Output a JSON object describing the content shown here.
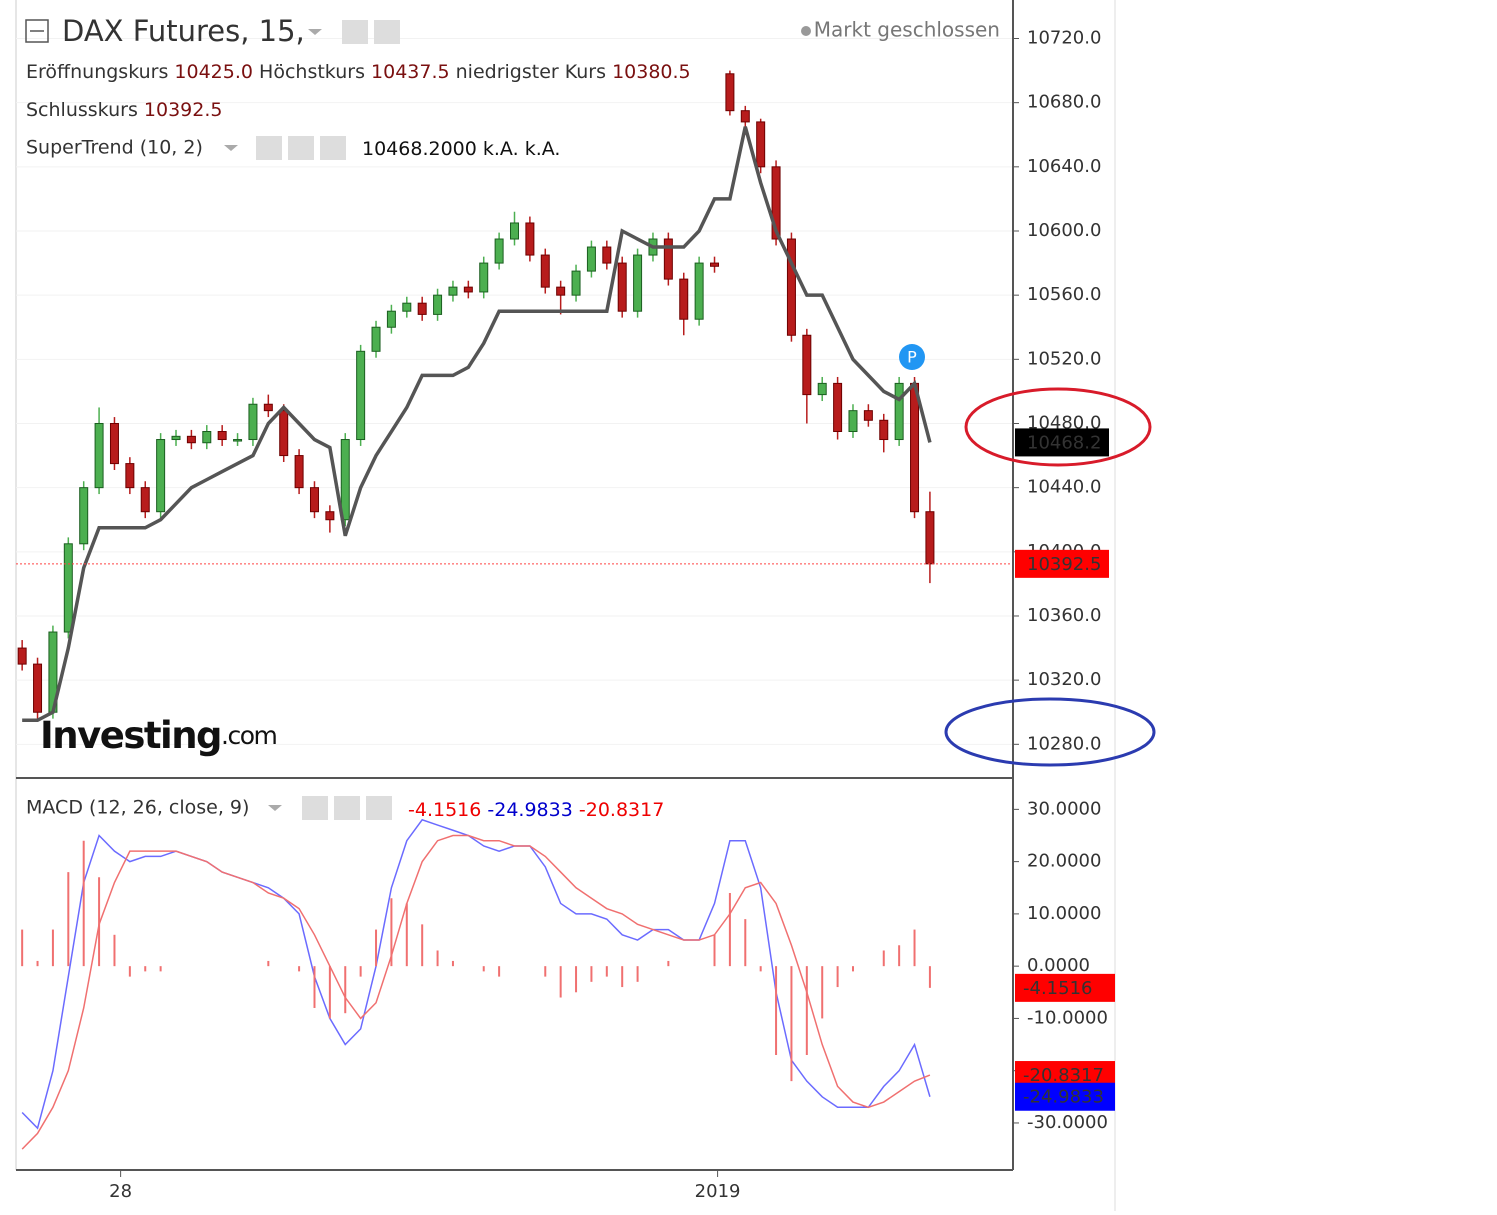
{
  "header": {
    "title": "DAX Futures, 15,",
    "status": "Markt geschlossen",
    "open_label": "Eröffnungskurs",
    "open_value": "10425.0",
    "high_label": "Höchstkurs",
    "high_value": "10437.5",
    "low_label": "niedrigster Kurs",
    "low_value": "10380.5",
    "close_label": "Schlusskurs",
    "close_value": "10392.5",
    "supertrend_title": "SuperTrend (10, 2)",
    "supertrend_readout": "10468.2000",
    "na_1": "k.A.",
    "na_2": "k.A.",
    "macd_title": "MACD (12, 26, close, 9)",
    "marker": "P",
    "logo_main": "Investing",
    "logo_suffix": ".com"
  },
  "chart_data": [
    {
      "type": "candlestick",
      "xlim": [
        -0.4,
        64.4
      ],
      "xticks": [
        {
          "value": 6.4,
          "label": "28"
        },
        {
          "value": 45.2,
          "label": "2019"
        }
      ],
      "ylim": [
        10259,
        10744
      ],
      "yticks": [
        {
          "value": 10280,
          "label": "10280.0"
        },
        {
          "value": 10320,
          "label": "10320.0"
        },
        {
          "value": 10360,
          "label": "10360.0"
        },
        {
          "value": 10400,
          "label": "10400.0"
        },
        {
          "value": 10440,
          "label": "10440.0"
        },
        {
          "value": 10480,
          "label": "10480.0"
        },
        {
          "value": 10520,
          "label": "10520.0"
        },
        {
          "value": 10560,
          "label": "10560.0"
        },
        {
          "value": 10600,
          "label": "10600.0"
        },
        {
          "value": 10640,
          "label": "10640.0"
        },
        {
          "value": 10680,
          "label": "10680.0"
        },
        {
          "value": 10720,
          "label": "10720.0"
        }
      ],
      "grid": true,
      "up_color": "#4caf50",
      "down_color": "#b71c1c",
      "ohlc": [
        [
          10340,
          10345,
          10326,
          10330
        ],
        [
          10330,
          10334,
          10296,
          10300
        ],
        [
          10300,
          10354,
          10296,
          10350
        ],
        [
          10350,
          10409,
          10346,
          10405
        ],
        [
          10405,
          10444,
          10401,
          10440
        ],
        [
          10440,
          10490,
          10436,
          10480
        ],
        [
          10480,
          10484,
          10451,
          10455
        ],
        [
          10455,
          10459,
          10436,
          10440
        ],
        [
          10440,
          10444,
          10421,
          10425
        ],
        [
          10425,
          10474,
          10421,
          10470
        ],
        [
          10470,
          10476,
          10466,
          10472
        ],
        [
          10472,
          10476,
          10464,
          10468
        ],
        [
          10468,
          10479,
          10464,
          10475
        ],
        [
          10475,
          10479,
          10466,
          10470
        ],
        [
          10470,
          10474,
          10466,
          10470
        ],
        [
          10470,
          10496,
          10466,
          10492
        ],
        [
          10492,
          10498,
          10484,
          10488
        ],
        [
          10488,
          10492,
          10456,
          10460
        ],
        [
          10460,
          10464,
          10436,
          10440
        ],
        [
          10440,
          10444,
          10421,
          10425
        ],
        [
          10425,
          10429,
          10412,
          10420
        ],
        [
          10420,
          10474,
          10416,
          10470
        ],
        [
          10470,
          10529,
          10466,
          10525
        ],
        [
          10525,
          10544,
          10521,
          10540
        ],
        [
          10540,
          10554,
          10536,
          10550
        ],
        [
          10550,
          10559,
          10546,
          10555
        ],
        [
          10555,
          10559,
          10544,
          10548
        ],
        [
          10548,
          10564,
          10544,
          10560
        ],
        [
          10560,
          10569,
          10556,
          10565
        ],
        [
          10565,
          10569,
          10558,
          10562
        ],
        [
          10562,
          10584,
          10558,
          10580
        ],
        [
          10580,
          10599,
          10576,
          10595
        ],
        [
          10595,
          10612,
          10591,
          10605
        ],
        [
          10605,
          10609,
          10581,
          10585
        ],
        [
          10585,
          10589,
          10561,
          10565
        ],
        [
          10565,
          10569,
          10548,
          10560
        ],
        [
          10560,
          10579,
          10556,
          10575
        ],
        [
          10575,
          10594,
          10571,
          10590
        ],
        [
          10590,
          10594,
          10576,
          10580
        ],
        [
          10580,
          10584,
          10546,
          10550
        ],
        [
          10550,
          10589,
          10546,
          10585
        ],
        [
          10585,
          10599,
          10581,
          10595
        ],
        [
          10595,
          10599,
          10566,
          10570
        ],
        [
          10570,
          10574,
          10535,
          10545
        ],
        [
          10545,
          10584,
          10541,
          10580
        ],
        [
          10580,
          10584,
          10574,
          10578
        ],
        [
          10698,
          10700,
          10672,
          10675
        ],
        [
          10675,
          10678,
          10660,
          10668
        ],
        [
          10668,
          10670,
          10636,
          10640
        ],
        [
          10640,
          10644,
          10591,
          10595
        ],
        [
          10595,
          10599,
          10531,
          10535
        ],
        [
          10535,
          10539,
          10480,
          10498
        ],
        [
          10498,
          10509,
          10494,
          10505
        ],
        [
          10505,
          10509,
          10470,
          10475
        ],
        [
          10475,
          10492,
          10471,
          10488
        ],
        [
          10488,
          10492,
          10478,
          10482
        ],
        [
          10482,
          10486,
          10462,
          10470
        ],
        [
          10470,
          10509,
          10466,
          10505
        ],
        [
          10505,
          10509,
          10421,
          10425
        ],
        [
          10425,
          10437.5,
          10380.5,
          10392.5
        ]
      ],
      "series": [
        {
          "color": "#555555",
          "values": [
            10295,
            10295,
            10300,
            10340,
            10390,
            10415,
            10415,
            10415,
            10415,
            10420,
            10430,
            10440,
            10445,
            10450,
            10455,
            10460,
            10480,
            10490,
            10480,
            10470,
            10465,
            10410,
            10440,
            10460,
            10475,
            10490,
            10510,
            10510,
            10510,
            10515,
            10530,
            10550,
            10550,
            10550,
            10550,
            10550,
            10550,
            10550,
            10550,
            10600,
            10595,
            10590,
            10590,
            10590,
            10600,
            10620,
            10620,
            10665,
            10630,
            10600,
            10580,
            10560,
            10560,
            10540,
            10520,
            10510,
            10500,
            10495,
            10505,
            10468.2
          ]
        }
      ]
    },
    {
      "type": "line",
      "ylim": [
        -39,
        36
      ],
      "yticks": [
        {
          "value": -30,
          "label": "-30.0000"
        },
        {
          "value": -20,
          "label": "-20.0000"
        },
        {
          "value": -10,
          "label": "-10.0000"
        },
        {
          "value": 0,
          "label": "0.0000"
        },
        {
          "value": 10,
          "label": "10.0000"
        },
        {
          "value": 20,
          "label": "20.0000"
        },
        {
          "value": 30,
          "label": "30.0000"
        }
      ],
      "series": [
        {
          "color": "#6b6bff",
          "values": [
            -28,
            -31,
            -20,
            -2,
            16,
            25,
            22,
            20,
            21,
            21,
            22,
            21,
            20,
            18,
            17,
            16,
            15,
            13,
            10,
            -2,
            -10,
            -15,
            -12,
            0,
            15,
            24,
            28,
            27,
            26,
            25,
            23,
            22,
            23,
            23,
            19,
            12,
            10,
            10,
            9,
            6,
            5,
            7,
            7,
            5,
            5,
            12,
            24,
            24,
            15,
            -5,
            -18,
            -22,
            -25,
            -27,
            -27,
            -27,
            -23,
            -20,
            -15,
            -24.9833
          ]
        },
        {
          "color": "#f07070",
          "values": [
            -35,
            -32,
            -27,
            -20,
            -8,
            8,
            16,
            22,
            22,
            22,
            22,
            21,
            20,
            18,
            17,
            16,
            14,
            13,
            11,
            6,
            0,
            -6,
            -10,
            -7,
            2,
            12,
            20,
            24,
            25,
            25,
            24,
            24,
            23,
            23,
            21,
            18,
            15,
            13,
            11,
            10,
            8,
            7,
            6,
            5,
            5,
            6,
            10,
            15,
            16,
            12,
            4,
            -5,
            -15,
            -23,
            -26,
            -27,
            -26,
            -24,
            -22,
            -20.8317
          ]
        },
        {
          "type": "bar",
          "color": "#f07070",
          "values": [
            7,
            1,
            7,
            18,
            24,
            17,
            6,
            -2,
            -1,
            -1,
            0,
            0,
            0,
            0,
            0,
            0,
            1,
            0,
            -1,
            -8,
            -10,
            -9,
            -2,
            7,
            13,
            12,
            8,
            3,
            1,
            0,
            -1,
            -2,
            0,
            0,
            -2,
            -6,
            -5,
            -3,
            -2,
            -4,
            -3,
            0,
            1,
            0,
            0,
            6,
            14,
            9,
            -1,
            -17,
            -22,
            -17,
            -10,
            -4,
            -1,
            0,
            3,
            4,
            7,
            -4.1516
          ]
        }
      ]
    }
  ]
}
